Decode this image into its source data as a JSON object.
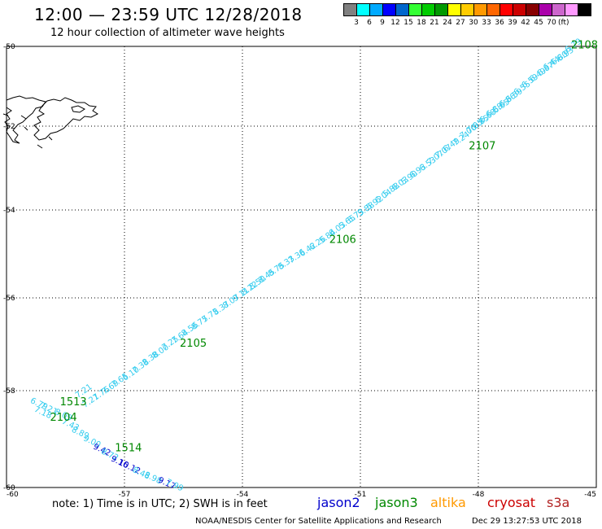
{
  "header": {
    "title": "12:00 — 23:59 UTC 12/28/2018",
    "subtitle": "12 hour collection of altimeter wave heights"
  },
  "scale": {
    "unit": "(ft)",
    "colors": [
      "#808080",
      "#00ffff",
      "#00aaff",
      "#0000ff",
      "#0066cc",
      "#33ff33",
      "#00cc00",
      "#009900",
      "#ffff00",
      "#ffcc00",
      "#ff9900",
      "#ff6600",
      "#ff0000",
      "#cc0000",
      "#880000",
      "#aa00aa",
      "#cc66cc",
      "#ff99ff",
      "#000000"
    ],
    "labels": [
      "3",
      "6",
      "9",
      "12",
      "15",
      "18",
      "21",
      "24",
      "27",
      "30",
      "33",
      "36",
      "39",
      "42",
      "45",
      "70"
    ]
  },
  "axes": {
    "lon_ticks": [
      "-60",
      "-57",
      "-54",
      "-51",
      "-48",
      "-45"
    ],
    "lat_ticks": [
      "-50",
      "-52",
      "-54",
      "-56",
      "-58",
      "-60"
    ]
  },
  "colors": {
    "jason2": "#0000cc",
    "jason3": "#008800",
    "altika": "#ff9900",
    "cryosat": "#cc0000",
    "s3a": "#b22222",
    "track": "#33ccee"
  },
  "track_a": [
    {
      "lat": -50.03,
      "lon": -45.55,
      "v": "6.79"
    },
    {
      "lat": -50.25,
      "lon": -45.75,
      "v": "6.93"
    },
    {
      "lat": -50.35,
      "lon": -45.9,
      "v": "6.80"
    },
    {
      "lat": -50.48,
      "lon": -46.1,
      "v": "6.44"
    },
    {
      "lat": -50.62,
      "lon": -46.25,
      "v": "6.87"
    },
    {
      "lat": -50.77,
      "lon": -46.45,
      "v": "6.49"
    },
    {
      "lat": -50.92,
      "lon": -46.65,
      "v": "6.59"
    },
    {
      "lat": -51.1,
      "lon": -46.85,
      "v": "6.55"
    },
    {
      "lat": -51.28,
      "lon": -47.05,
      "v": "6.59"
    },
    {
      "lat": -51.4,
      "lon": -47.22,
      "v": "6.86"
    },
    {
      "lat": -51.55,
      "lon": -47.38,
      "v": "6.65"
    },
    {
      "lat": -51.65,
      "lon": -47.55,
      "v": "6.88"
    },
    {
      "lat": -51.8,
      "lon": -47.72,
      "v": "6.68"
    },
    {
      "lat": -51.95,
      "lon": -47.9,
      "v": "6.85"
    },
    {
      "lat": -52.05,
      "lon": -48.05,
      "v": "7.05"
    },
    {
      "lat": -52.18,
      "lon": -48.22,
      "v": "7.06"
    },
    {
      "lat": -52.35,
      "lon": -48.4,
      "v": "7.24"
    },
    {
      "lat": -52.5,
      "lon": -48.65,
      "v": "6.49"
    },
    {
      "lat": -52.65,
      "lon": -48.85,
      "v": "7.07"
    },
    {
      "lat": -52.8,
      "lon": -49.05,
      "v": "7.07"
    },
    {
      "lat": -52.95,
      "lon": -49.25,
      "v": "6.53"
    },
    {
      "lat": -53.12,
      "lon": -49.5,
      "v": "6.93"
    },
    {
      "lat": -53.28,
      "lon": -49.72,
      "v": "5.90"
    },
    {
      "lat": -53.42,
      "lon": -49.95,
      "v": "6.03"
    },
    {
      "lat": -53.57,
      "lon": -50.18,
      "v": "5.88"
    },
    {
      "lat": -53.72,
      "lon": -50.38,
      "v": "6.04"
    },
    {
      "lat": -53.88,
      "lon": -50.6,
      "v": "5.92"
    },
    {
      "lat": -54.03,
      "lon": -50.82,
      "v": "5.88"
    },
    {
      "lat": -54.18,
      "lon": -51.08,
      "v": "5.73"
    },
    {
      "lat": -54.32,
      "lon": -51.3,
      "v": "5.65"
    },
    {
      "lat": -54.48,
      "lon": -51.55,
      "v": "6.03"
    },
    {
      "lat": -54.65,
      "lon": -51.8,
      "v": "5.84"
    },
    {
      "lat": -54.8,
      "lon": -52.05,
      "v": "6.26"
    },
    {
      "lat": -54.95,
      "lon": -52.3,
      "v": "6.42"
    },
    {
      "lat": -55.1,
      "lon": -52.58,
      "v": "7.36"
    },
    {
      "lat": -55.25,
      "lon": -52.85,
      "v": "8.33"
    },
    {
      "lat": -55.4,
      "lon": -53.1,
      "v": "8.75"
    },
    {
      "lat": -55.55,
      "lon": -53.35,
      "v": "8.45"
    },
    {
      "lat": -55.7,
      "lon": -53.58,
      "v": "8.50"
    },
    {
      "lat": -55.83,
      "lon": -53.78,
      "v": "8.22"
    },
    {
      "lat": -55.97,
      "lon": -54.0,
      "v": "9.11"
    },
    {
      "lat": -56.12,
      "lon": -54.25,
      "v": "8.07"
    },
    {
      "lat": -56.27,
      "lon": -54.5,
      "v": "8.37"
    },
    {
      "lat": -56.42,
      "lon": -54.78,
      "v": "7.75"
    },
    {
      "lat": -56.58,
      "lon": -55.05,
      "v": "8.75"
    },
    {
      "lat": -56.72,
      "lon": -55.3,
      "v": "8.56"
    },
    {
      "lat": -56.88,
      "lon": -55.55,
      "v": "7.64"
    },
    {
      "lat": -57.02,
      "lon": -55.8,
      "v": "7.25"
    },
    {
      "lat": -57.2,
      "lon": -56.05,
      "v": "8.00"
    },
    {
      "lat": -57.35,
      "lon": -56.3,
      "v": "8.38"
    },
    {
      "lat": -57.52,
      "lon": -56.55,
      "v": "7.38"
    },
    {
      "lat": -57.68,
      "lon": -56.8,
      "v": "6.10"
    },
    {
      "lat": -57.82,
      "lon": -57.08,
      "v": "7.65"
    },
    {
      "lat": -57.97,
      "lon": -57.32,
      "v": "7.69"
    },
    {
      "lat": -58.1,
      "lon": -57.55,
      "v": "7.76"
    },
    {
      "lat": -58.25,
      "lon": -57.82,
      "v": "7.21"
    },
    {
      "lat": -58.05,
      "lon": -58.0,
      "v": "7.21"
    }
  ],
  "track_b": [
    {
      "lat": -58.32,
      "lon": -59.2,
      "v": "6.79"
    },
    {
      "lat": -58.42,
      "lon": -58.95,
      "v": "7.21"
    },
    {
      "lat": -58.5,
      "lon": -59.1,
      "v": "7.18"
    },
    {
      "lat": -58.55,
      "lon": -58.58,
      "v": "8.09"
    },
    {
      "lat": -58.75,
      "lon": -58.4,
      "v": "7.43"
    },
    {
      "lat": -58.92,
      "lon": -58.15,
      "v": "8.89"
    },
    {
      "lat": -59.1,
      "lon": -57.85,
      "v": "9.00"
    },
    {
      "lat": -59.27,
      "lon": -57.6,
      "v": "9.42",
      "sat": "jason2"
    },
    {
      "lat": -59.37,
      "lon": -57.4,
      "v": "8.72"
    },
    {
      "lat": -59.52,
      "lon": -57.15,
      "v": "9.16",
      "sat": "jason2"
    },
    {
      "lat": -59.62,
      "lon": -56.9,
      "v": "10.12",
      "sat": "jason2"
    },
    {
      "lat": -59.75,
      "lon": -56.6,
      "v": "8.48"
    },
    {
      "lat": -59.85,
      "lon": -56.3,
      "v": "8.98"
    },
    {
      "lat": -59.96,
      "lon": -55.95,
      "v": "9.17",
      "sat": "jason2"
    },
    {
      "lat": -60.05,
      "lon": -55.75,
      "v": "7.99"
    }
  ],
  "markers": [
    {
      "lat": -50.05,
      "lon": -45.3,
      "v": "2108"
    },
    {
      "lat": -52.55,
      "lon": -47.9,
      "v": "2107"
    },
    {
      "lat": -54.75,
      "lon": -51.45,
      "v": "2106"
    },
    {
      "lat": -57.05,
      "lon": -55.25,
      "v": "2105"
    },
    {
      "lat": -58.3,
      "lon": -58.3,
      "v": "1513"
    },
    {
      "lat": -58.62,
      "lon": -58.55,
      "v": "2104"
    },
    {
      "lat": -59.25,
      "lon": -56.9,
      "v": "1514"
    }
  ],
  "footer": {
    "note": "note:  1) Time is in UTC;  2) SWH is in feet",
    "jason2": "jason2",
    "jason3": "jason3",
    "altika": "altika",
    "cryosat": "cryosat",
    "s3a": "s3a",
    "credit": "NOAA/NESDIS Center for Satellite Applications and Research",
    "timestamp": "Dec 29 13:27:53 UTC 2018"
  }
}
